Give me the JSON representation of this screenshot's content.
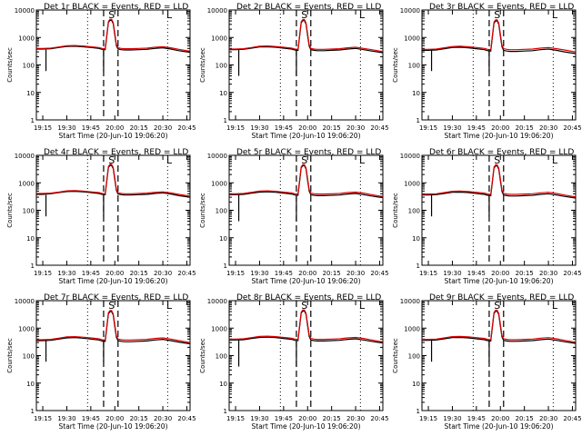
{
  "chart_data": {
    "type": "line",
    "scale": "log",
    "ylim": [
      1,
      10000
    ],
    "yticks": [
      1,
      10,
      100,
      1000,
      10000
    ],
    "ytick_labels": [
      "1",
      "10",
      "100",
      "1000",
      "10000"
    ],
    "xlim": [
      "19:11",
      "20:47"
    ],
    "xticks": [
      "19:15",
      "19:30",
      "19:45",
      "20:00",
      "20:15",
      "20:30",
      "20:45"
    ],
    "xtick_labels": [
      "19:15",
      "19:30",
      "19:45",
      "20:00",
      "20:15",
      "20:30",
      "20:45"
    ],
    "xlabel": "Start Time (20-Jun-10 19:06:20)",
    "ylabel": "Counts/sec",
    "grid": false,
    "colors": {
      "events": "#000000",
      "lld": "#e00000"
    },
    "dotted_markers": [
      "19:11",
      "19:43",
      "20:33"
    ],
    "dashed_markers": [
      "19:53",
      "20:02"
    ],
    "flag_labels": [
      {
        "text": "S",
        "at": "19:58"
      },
      {
        "text": "L",
        "at": "20:34"
      }
    ],
    "series_names": [
      "Events",
      "LLD"
    ],
    "x": [
      "19:11",
      "19:15",
      "19:20",
      "19:25",
      "19:30",
      "19:35",
      "19:40",
      "19:45",
      "19:50",
      "19:52",
      "19:54",
      "19:56",
      "19:57",
      "19:58",
      "19:59",
      "20:00",
      "20:01",
      "20:02",
      "20:04",
      "20:06",
      "20:10",
      "20:15",
      "20:20",
      "20:25",
      "20:30",
      "20:35",
      "20:40",
      "20:45",
      "20:47"
    ],
    "panels": [
      {
        "title": "Det 1r BLACK = Events, RED = LLD",
        "series": [
          {
            "name": "Events",
            "values": [
              380,
              380,
              390,
              430,
              470,
              480,
              460,
              430,
              400,
              370,
              360,
              3500,
              4200,
              4200,
              3200,
              1200,
              500,
              380,
              360,
              350,
              350,
              360,
              370,
              400,
              420,
              380,
              330,
              300,
              290
            ]
          },
          {
            "name": "LLD",
            "values": [
              400,
              400,
              410,
              450,
              500,
              510,
              490,
              460,
              430,
              400,
              390,
              3800,
              4600,
              4600,
              3500,
              1400,
              560,
              420,
              400,
              390,
              390,
              400,
              410,
              440,
              460,
              420,
              370,
              330,
              320
            ]
          }
        ]
      },
      {
        "title": "Det 2r BLACK = Events, RED = LLD",
        "series": [
          {
            "name": "Events",
            "values": [
              360,
              360,
              370,
              410,
              450,
              460,
              440,
              410,
              380,
              350,
              340,
              3400,
              4100,
              4100,
              3100,
              1150,
              480,
              360,
              340,
              330,
              330,
              340,
              350,
              380,
              400,
              360,
              320,
              290,
              280
            ]
          },
          {
            "name": "LLD",
            "values": [
              380,
              380,
              390,
              430,
              480,
              490,
              470,
              440,
              410,
              380,
              370,
              3700,
              4500,
              4500,
              3400,
              1350,
              540,
              400,
              380,
              370,
              370,
              380,
              390,
              420,
              440,
              400,
              360,
              320,
              310
            ]
          }
        ]
      },
      {
        "title": "Det 3r BLACK = Events, RED = LLD",
        "series": [
          {
            "name": "Events",
            "values": [
              340,
              340,
              350,
              390,
              430,
              440,
              420,
              390,
              360,
              330,
              320,
              3300,
              4000,
              4000,
              3000,
              1100,
              460,
              340,
              320,
              310,
              310,
              320,
              330,
              360,
              380,
              340,
              300,
              270,
              260
            ]
          },
          {
            "name": "LLD",
            "values": [
              370,
              370,
              380,
              420,
              470,
              480,
              460,
              430,
              400,
              370,
              360,
              3600,
              4400,
              4400,
              3300,
              1300,
              520,
              390,
              370,
              360,
              360,
              370,
              380,
              410,
              430,
              390,
              350,
              310,
              300
            ]
          }
        ]
      },
      {
        "title": "Det 4r BLACK = Events, RED = LLD",
        "series": [
          {
            "name": "Events",
            "values": [
              380,
              380,
              400,
              440,
              480,
              490,
              470,
              440,
              410,
              380,
              370,
              3600,
              4300,
              4300,
              3300,
              1250,
              520,
              390,
              370,
              360,
              360,
              370,
              380,
              410,
              430,
              390,
              340,
              310,
              300
            ]
          },
          {
            "name": "LLD",
            "values": [
              410,
              410,
              420,
              460,
              510,
              520,
              500,
              470,
              440,
              410,
              400,
              3900,
              4700,
              4700,
              3600,
              1450,
              580,
              430,
              410,
              400,
              400,
              410,
              420,
              450,
              470,
              430,
              380,
              340,
              330
            ]
          }
        ]
      },
      {
        "title": "Det 5r BLACK = Events, RED = LLD",
        "series": [
          {
            "name": "Events",
            "values": [
              370,
              370,
              380,
              420,
              460,
              470,
              450,
              420,
              390,
              360,
              350,
              3500,
              4200,
              4200,
              3200,
              1200,
              500,
              370,
              350,
              340,
              340,
              350,
              360,
              390,
              410,
              370,
              330,
              300,
              290
            ]
          },
          {
            "name": "LLD",
            "values": [
              400,
              400,
              410,
              450,
              500,
              510,
              490,
              460,
              430,
              400,
              390,
              3800,
              4600,
              4600,
              3500,
              1400,
              560,
              420,
              400,
              390,
              390,
              400,
              410,
              440,
              460,
              420,
              370,
              330,
              320
            ]
          }
        ]
      },
      {
        "title": "Det 6r BLACK = Events, RED = LLD",
        "series": [
          {
            "name": "Events",
            "values": [
              360,
              360,
              370,
              410,
              450,
              460,
              440,
              410,
              380,
              350,
              340,
              3400,
              4100,
              4100,
              3100,
              1150,
              480,
              360,
              340,
              330,
              330,
              340,
              350,
              380,
              400,
              360,
              320,
              290,
              280
            ]
          },
          {
            "name": "LLD",
            "values": [
              390,
              390,
              400,
              440,
              490,
              500,
              480,
              450,
              420,
              390,
              380,
              3700,
              4500,
              4500,
              3400,
              1350,
              540,
              410,
              390,
              380,
              380,
              390,
              400,
              430,
              450,
              410,
              360,
              320,
              310
            ]
          }
        ]
      },
      {
        "title": "Det 7r BLACK = Events, RED = LLD",
        "series": [
          {
            "name": "Events",
            "values": [
              350,
              350,
              360,
              400,
              440,
              450,
              430,
              400,
              370,
              340,
              330,
              3300,
              4000,
              4000,
              3000,
              1100,
              460,
              350,
              330,
              320,
              320,
              330,
              340,
              370,
              390,
              350,
              310,
              280,
              270
            ]
          },
          {
            "name": "LLD",
            "values": [
              380,
              380,
              390,
              430,
              480,
              490,
              470,
              440,
              410,
              380,
              370,
              3600,
              4400,
              4400,
              3300,
              1300,
              520,
              400,
              380,
              370,
              370,
              380,
              390,
              420,
              440,
              400,
              350,
              310,
              300
            ]
          }
        ]
      },
      {
        "title": "Det 8r BLACK = Events, RED = LLD",
        "series": [
          {
            "name": "Events",
            "values": [
              370,
              370,
              380,
              420,
              460,
              470,
              450,
              420,
              390,
              360,
              350,
              3500,
              4200,
              4200,
              3200,
              1200,
              500,
              370,
              350,
              340,
              340,
              350,
              360,
              390,
              410,
              370,
              330,
              300,
              290
            ]
          },
          {
            "name": "LLD",
            "values": [
              400,
              400,
              410,
              450,
              500,
              510,
              490,
              460,
              430,
              400,
              390,
              3800,
              4600,
              4600,
              3500,
              1400,
              560,
              420,
              400,
              390,
              390,
              400,
              410,
              440,
              460,
              420,
              370,
              330,
              320
            ]
          }
        ]
      },
      {
        "title": "Det 9r BLACK = Events, RED = LLD",
        "series": [
          {
            "name": "Events",
            "values": [
              360,
              360,
              370,
              410,
              450,
              460,
              440,
              410,
              380,
              350,
              340,
              3400,
              4100,
              4100,
              3100,
              1150,
              480,
              360,
              340,
              330,
              330,
              340,
              350,
              380,
              400,
              360,
              320,
              290,
              280
            ]
          },
          {
            "name": "LLD",
            "values": [
              390,
              390,
              400,
              440,
              490,
              500,
              480,
              450,
              420,
              390,
              380,
              3700,
              4500,
              4500,
              3400,
              1350,
              540,
              410,
              390,
              380,
              380,
              390,
              400,
              430,
              450,
              410,
              360,
              320,
              310
            ]
          }
        ]
      }
    ]
  }
}
